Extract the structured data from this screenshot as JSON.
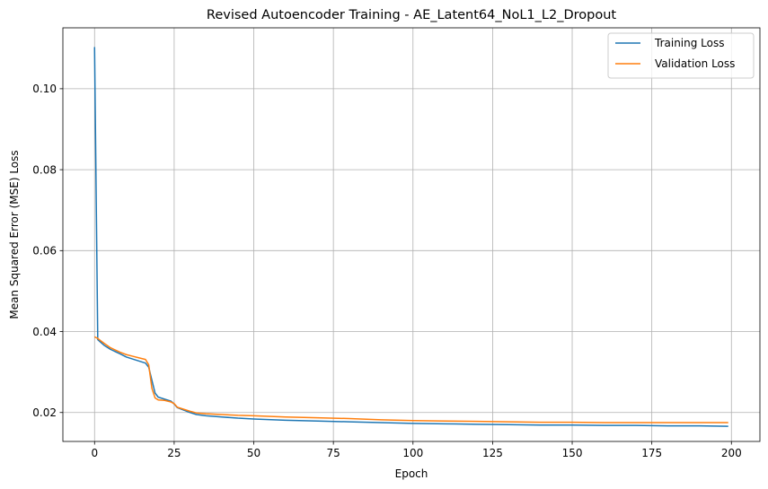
{
  "chart_data": {
    "type": "line",
    "title": "Revised Autoencoder Training - AE_Latent64_NoL1_L2_Dropout",
    "xlabel": "Epoch",
    "ylabel": "Mean Squared Error (MSE) Loss",
    "xlim": [
      -9.95,
      208.95
    ],
    "ylim": [
      0.01285,
      0.11505
    ],
    "x_ticks": [
      0,
      25,
      50,
      75,
      100,
      125,
      150,
      175,
      200
    ],
    "y_ticks": [
      0.02,
      0.04,
      0.06,
      0.08,
      0.1
    ],
    "x_tick_labels": [
      "0",
      "25",
      "50",
      "75",
      "100",
      "125",
      "150",
      "175",
      "200"
    ],
    "y_tick_labels": [
      "0.02",
      "0.04",
      "0.06",
      "0.08",
      "0.10"
    ],
    "grid": true,
    "legend_position": "top-right",
    "series": [
      {
        "name": "Training Loss",
        "color": "#1f77b4",
        "points": [
          [
            0,
            0.1103
          ],
          [
            1,
            0.038
          ],
          [
            2,
            0.0373
          ],
          [
            3,
            0.0366
          ],
          [
            5,
            0.0356
          ],
          [
            8,
            0.0345
          ],
          [
            10,
            0.0337
          ],
          [
            12,
            0.0332
          ],
          [
            14,
            0.0327
          ],
          [
            16,
            0.0322
          ],
          [
            17,
            0.0312
          ],
          [
            18,
            0.028
          ],
          [
            19,
            0.0248
          ],
          [
            20,
            0.0238
          ],
          [
            22,
            0.0233
          ],
          [
            24,
            0.0228
          ],
          [
            25,
            0.0221
          ],
          [
            26,
            0.0212
          ],
          [
            28,
            0.0206
          ],
          [
            30,
            0.02
          ],
          [
            32,
            0.0195
          ],
          [
            35,
            0.0192
          ],
          [
            40,
            0.0189
          ],
          [
            45,
            0.0186
          ],
          [
            50,
            0.0184
          ],
          [
            60,
            0.0181
          ],
          [
            70,
            0.0179
          ],
          [
            80,
            0.0177
          ],
          [
            90,
            0.0175
          ],
          [
            100,
            0.0173
          ],
          [
            110,
            0.0172
          ],
          [
            120,
            0.0171
          ],
          [
            130,
            0.017
          ],
          [
            140,
            0.0169
          ],
          [
            150,
            0.0169
          ],
          [
            160,
            0.0168
          ],
          [
            170,
            0.0168
          ],
          [
            180,
            0.0167
          ],
          [
            190,
            0.0167
          ],
          [
            199,
            0.0166
          ]
        ]
      },
      {
        "name": "Validation Loss",
        "color": "#ff7f0e",
        "points": [
          [
            0,
            0.0387
          ],
          [
            1,
            0.0383
          ],
          [
            2,
            0.0377
          ],
          [
            3,
            0.0371
          ],
          [
            5,
            0.036
          ],
          [
            8,
            0.0349
          ],
          [
            10,
            0.0343
          ],
          [
            12,
            0.0339
          ],
          [
            14,
            0.0335
          ],
          [
            16,
            0.0331
          ],
          [
            17,
            0.0318
          ],
          [
            18,
            0.026
          ],
          [
            19,
            0.0236
          ],
          [
            20,
            0.0231
          ],
          [
            22,
            0.023
          ],
          [
            24,
            0.0226
          ],
          [
            25,
            0.0222
          ],
          [
            26,
            0.0213
          ],
          [
            28,
            0.0208
          ],
          [
            30,
            0.0203
          ],
          [
            32,
            0.0199
          ],
          [
            35,
            0.0197
          ],
          [
            40,
            0.0195
          ],
          [
            45,
            0.0193
          ],
          [
            50,
            0.0192
          ],
          [
            60,
            0.0189
          ],
          [
            70,
            0.0187
          ],
          [
            80,
            0.0185
          ],
          [
            90,
            0.0182
          ],
          [
            100,
            0.018
          ],
          [
            110,
            0.0179
          ],
          [
            120,
            0.0178
          ],
          [
            130,
            0.0177
          ],
          [
            140,
            0.0176
          ],
          [
            150,
            0.0176
          ],
          [
            160,
            0.0175
          ],
          [
            170,
            0.0175
          ],
          [
            180,
            0.0175
          ],
          [
            190,
            0.0175
          ],
          [
            199,
            0.0175
          ]
        ]
      }
    ]
  }
}
